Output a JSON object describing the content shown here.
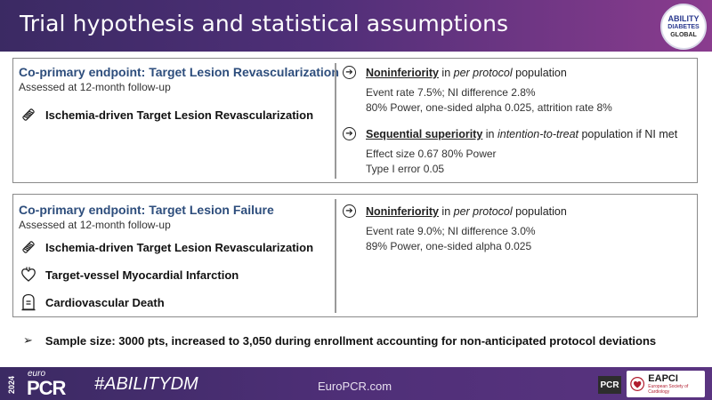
{
  "header": {
    "title": "Trial hypothesis and statistical assumptions",
    "logo": {
      "line1": "ABILITY",
      "line2": "DIABETES",
      "line3": "GLOBAL"
    }
  },
  "endpoint1": {
    "title": "Co-primary endpoint: Target Lesion Revascularization",
    "subtitle": "Assessed at 12-month follow-up",
    "items": [
      {
        "icon": "stent-icon",
        "label": "Ischemia-driven Target Lesion Revascularization"
      }
    ],
    "right": [
      {
        "head_strong": "Noninferiority",
        "head_plain1": " in ",
        "head_italic": "per protocol",
        "head_plain2": " population",
        "lines": [
          "Event rate 7.5%; NI difference 2.8%",
          "80% Power, one-sided alpha 0.025, attrition rate 8%"
        ]
      },
      {
        "head_strong": "Sequential superiority",
        "head_plain1": " in ",
        "head_italic": "intention-to-treat",
        "head_plain2": " population if NI met",
        "lines": [
          "Effect size 0.67 80% Power",
          "Type I error 0.05"
        ]
      }
    ]
  },
  "endpoint2": {
    "title": "Co-primary endpoint: Target Lesion Failure",
    "subtitle": "Assessed at 12-month follow-up",
    "items": [
      {
        "icon": "stent-icon",
        "label": "Ischemia-driven Target Lesion Revascularization"
      },
      {
        "icon": "heart-icon",
        "label": "Target-vessel Myocardial Infarction"
      },
      {
        "icon": "tombstone-icon",
        "label": "Cardiovascular Death"
      }
    ],
    "right": [
      {
        "head_strong": "Noninferiority",
        "head_plain1": " in ",
        "head_italic": "per protocol",
        "head_plain2": " population",
        "lines": [
          "Event rate 9.0%; NI difference 3.0%",
          "89% Power, one-sided alpha 0.025"
        ]
      }
    ]
  },
  "sample_size": "Sample size: 3000 pts, increased to 3,050 during enrollment accounting for non-anticipated protocol deviations",
  "footer": {
    "year": "2024",
    "euro": "euro",
    "pcr": "PCR",
    "hashtag": "#ABILITYDM",
    "site": "EuroPCR.com",
    "pcr_logo": "PCR",
    "eapci": "EAPCI",
    "eapci_sub": "European Society of Cardiology"
  },
  "colors": {
    "header_start": "#3b2a63",
    "header_end": "#8a3c8e",
    "endpoint_title": "#2d4d7c"
  }
}
